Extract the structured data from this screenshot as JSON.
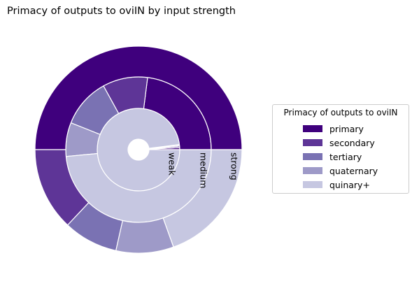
{
  "chart_data": {
    "type": "pie",
    "subtype": "nested-donut",
    "title": "Primacy of outputs to oviIN by input strength",
    "rings": [
      {
        "name": "weak",
        "values": [
          0.8,
          0.6,
          0.4,
          0.2,
          98.0
        ]
      },
      {
        "name": "medium",
        "values": [
          23.0,
          10.0,
          11.0,
          7.5,
          48.5
        ]
      },
      {
        "name": "strong",
        "values": [
          50.0,
          13.0,
          8.5,
          9.0,
          19.5
        ]
      }
    ],
    "categories": [
      "primary",
      "secondary",
      "tertiary",
      "quaternary",
      "quinary+"
    ],
    "colors": [
      "#3f007d",
      "#5e3597",
      "#7a72b3",
      "#9e9ac8",
      "#c6c7e1"
    ],
    "legend": {
      "title": "Primacy of outputs to oviIN",
      "location": "right"
    }
  }
}
